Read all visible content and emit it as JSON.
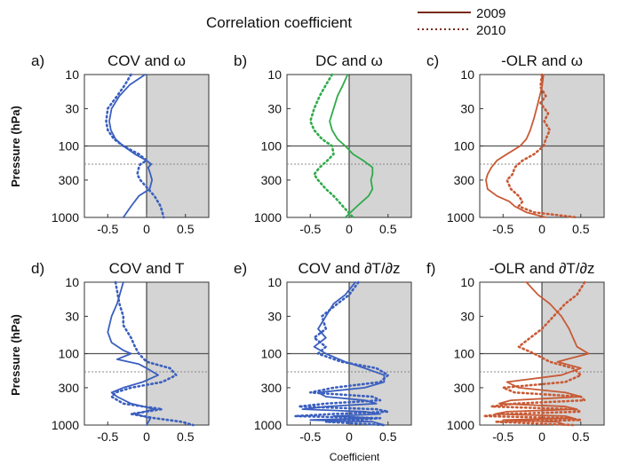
{
  "figure": {
    "title": "Correlation  coefficient",
    "legend": [
      {
        "label": "2009",
        "style": "solid",
        "color": "#7a2a1a"
      },
      {
        "label": "2010",
        "style": "dotted",
        "color": "#7a2a1a"
      }
    ],
    "ylabel": "Pressure (hPa)",
    "xlabel": "Coefficient",
    "shaded_region": "x > 0",
    "shade_color": "#d4d4d4",
    "hline_solid_hpa": 100,
    "hline_dashed_hpa": 180
  },
  "chart_data": [
    {
      "type": "line",
      "panel": "a)",
      "title": "COV and ω",
      "color": "#3a5fbf",
      "xlim": [
        -0.8,
        0.8
      ],
      "xticks": [
        -0.5,
        0,
        0.5
      ],
      "xtick_labels": [
        "-0.5",
        "0",
        "0.5"
      ],
      "yscale": "log",
      "ylim": [
        10,
        1000
      ],
      "yticks": [
        10,
        30,
        100,
        300,
        1000
      ],
      "ytick_labels": [
        "10",
        "30",
        "100",
        "300",
        "1000"
      ],
      "series": [
        {
          "name": "2009",
          "style": "solid",
          "pressure": [
            10,
            14,
            20,
            30,
            45,
            60,
            80,
            100,
            130,
            160,
            180,
            200,
            250,
            300,
            400,
            500,
            700,
            1000
          ],
          "values": [
            -0.02,
            -0.22,
            -0.35,
            -0.45,
            -0.48,
            -0.46,
            -0.4,
            -0.3,
            -0.15,
            0.0,
            0.06,
            0.02,
            0.05,
            0.07,
            0.04,
            -0.1,
            -0.2,
            -0.3
          ]
        },
        {
          "name": "2010",
          "style": "dotted",
          "pressure": [
            10,
            14,
            20,
            30,
            45,
            60,
            80,
            100,
            130,
            160,
            180,
            200,
            250,
            300,
            400,
            500,
            700,
            1000
          ],
          "values": [
            -0.2,
            -0.28,
            -0.38,
            -0.5,
            -0.52,
            -0.5,
            -0.42,
            -0.3,
            -0.1,
            0.0,
            -0.08,
            -0.1,
            -0.12,
            -0.08,
            0.02,
            0.1,
            0.18,
            0.22
          ]
        }
      ]
    },
    {
      "type": "line",
      "panel": "b)",
      "title": "DC and ω",
      "color": "#2eaa4a",
      "xlim": [
        -0.8,
        0.8
      ],
      "xticks": [
        -0.5,
        0,
        0.5
      ],
      "xtick_labels": [
        "-0.5",
        "0",
        "0.5"
      ],
      "yscale": "log",
      "ylim": [
        10,
        1000
      ],
      "yticks": [
        10,
        30,
        100,
        300,
        1000
      ],
      "ytick_labels": [
        "10",
        "30",
        "100",
        "300",
        "1000"
      ],
      "series": [
        {
          "name": "2009",
          "style": "solid",
          "pressure": [
            10,
            14,
            20,
            30,
            45,
            60,
            80,
            100,
            130,
            160,
            200,
            250,
            300,
            400,
            500,
            700,
            1000
          ],
          "values": [
            -0.02,
            -0.08,
            -0.15,
            -0.2,
            -0.25,
            -0.22,
            -0.15,
            -0.05,
            0.05,
            0.18,
            0.3,
            0.3,
            0.28,
            0.3,
            0.25,
            0.1,
            -0.05
          ]
        },
        {
          "name": "2010",
          "style": "dotted",
          "pressure": [
            10,
            14,
            20,
            30,
            45,
            60,
            80,
            100,
            130,
            160,
            200,
            250,
            300,
            400,
            500,
            700,
            1000
          ],
          "values": [
            -0.22,
            -0.3,
            -0.38,
            -0.45,
            -0.5,
            -0.45,
            -0.35,
            -0.22,
            -0.2,
            -0.28,
            -0.38,
            -0.45,
            -0.4,
            -0.3,
            -0.2,
            -0.08,
            0.05
          ]
        }
      ]
    },
    {
      "type": "line",
      "panel": "c)",
      "title": "-OLR and ω",
      "color": "#c85a35",
      "xlim": [
        -0.8,
        0.8
      ],
      "xticks": [
        -0.5,
        0,
        0.5
      ],
      "xtick_labels": [
        "-0.5",
        "0",
        "0.5"
      ],
      "yscale": "log",
      "ylim": [
        10,
        1000
      ],
      "yticks": [
        10,
        30,
        100,
        300,
        1000
      ],
      "ytick_labels": [
        "10",
        "30",
        "100",
        "300",
        "1000"
      ],
      "series": [
        {
          "name": "2009",
          "style": "solid",
          "pressure": [
            10,
            15,
            25,
            40,
            60,
            80,
            100,
            130,
            160,
            200,
            250,
            300,
            400,
            500,
            600,
            700,
            850,
            1000
          ],
          "values": [
            0.02,
            0.0,
            -0.05,
            -0.1,
            -0.15,
            -0.2,
            -0.28,
            -0.45,
            -0.58,
            -0.65,
            -0.7,
            -0.72,
            -0.7,
            -0.58,
            -0.42,
            -0.35,
            -0.2,
            0.05
          ]
        },
        {
          "name": "2010",
          "style": "dotted",
          "pressure": [
            10,
            15,
            20,
            25,
            35,
            45,
            60,
            80,
            100,
            130,
            160,
            200,
            250,
            300,
            400,
            500,
            600,
            700,
            850,
            1000
          ],
          "values": [
            0.0,
            -0.02,
            0.05,
            -0.02,
            0.08,
            0.03,
            0.1,
            0.05,
            0.02,
            -0.1,
            -0.25,
            -0.35,
            -0.38,
            -0.45,
            -0.4,
            -0.3,
            -0.25,
            -0.3,
            -0.1,
            0.45
          ]
        }
      ]
    },
    {
      "type": "line",
      "panel": "d)",
      "title": "COV and T",
      "color": "#3a5fbf",
      "xlim": [
        -0.8,
        0.8
      ],
      "xticks": [
        -0.5,
        0,
        0.5
      ],
      "xtick_labels": [
        "-0.5",
        "0",
        "0.5"
      ],
      "yscale": "log",
      "ylim": [
        10,
        1000
      ],
      "yticks": [
        10,
        30,
        100,
        300,
        1000
      ],
      "ytick_labels": [
        "10",
        "30",
        "100",
        "300",
        "1000"
      ],
      "series": [
        {
          "name": "2009",
          "style": "solid",
          "pressure": [
            10,
            20,
            30,
            50,
            70,
            90,
            100,
            120,
            140,
            160,
            200,
            250,
            300,
            350,
            400,
            500,
            600,
            700,
            800,
            1000
          ],
          "values": [
            -0.3,
            -0.38,
            -0.45,
            -0.5,
            -0.45,
            -0.3,
            -0.2,
            -0.38,
            -0.1,
            0.0,
            0.15,
            -0.05,
            -0.3,
            -0.45,
            -0.38,
            -0.2,
            0.1,
            -0.15,
            0.05,
            0.0
          ]
        },
        {
          "name": "2010",
          "style": "dotted",
          "pressure": [
            10,
            20,
            30,
            40,
            60,
            80,
            100,
            130,
            160,
            200,
            250,
            300,
            350,
            400,
            500,
            600,
            700,
            800,
            900,
            1000
          ],
          "values": [
            -0.4,
            -0.35,
            -0.3,
            -0.3,
            -0.2,
            -0.15,
            -0.1,
            0.0,
            0.3,
            0.38,
            0.2,
            -0.2,
            -0.4,
            -0.45,
            -0.3,
            0.2,
            -0.2,
            0.1,
            0.45,
            0.6
          ]
        }
      ]
    },
    {
      "type": "line",
      "panel": "e)",
      "title": "COV and ∂T/∂z",
      "color": "#3a5fbf",
      "xlim": [
        -0.8,
        0.8
      ],
      "xticks": [
        -0.5,
        0,
        0.5
      ],
      "xtick_labels": [
        "-0.5",
        "0",
        "0.5"
      ],
      "yscale": "log",
      "ylim": [
        10,
        1000
      ],
      "yticks": [
        10,
        30,
        100,
        300,
        1000
      ],
      "ytick_labels": [
        "10",
        "30",
        "100",
        "300",
        "1000"
      ],
      "series": [
        {
          "name": "2009",
          "style": "solid",
          "pressure": [
            10,
            15,
            20,
            30,
            45,
            60,
            80,
            100,
            130,
            160,
            200,
            250,
            300,
            350,
            400,
            450,
            500,
            550,
            600,
            650,
            700,
            750,
            800,
            850,
            900,
            1000
          ],
          "values": [
            0.08,
            -0.05,
            -0.2,
            -0.3,
            -0.4,
            -0.3,
            -0.45,
            -0.3,
            -0.05,
            0.2,
            0.45,
            0.45,
            0.2,
            -0.4,
            -0.3,
            0.2,
            0.35,
            -0.3,
            -0.6,
            0.2,
            0.4,
            -0.2,
            0.3,
            -0.5,
            0.3,
            0.45
          ]
        },
        {
          "name": "2010",
          "style": "dotted",
          "pressure": [
            10,
            15,
            20,
            30,
            45,
            60,
            80,
            100,
            130,
            160,
            200,
            250,
            300,
            350,
            400,
            450,
            500,
            550,
            600,
            650,
            700,
            750,
            800,
            850,
            900,
            1000
          ],
          "values": [
            0.12,
            0.0,
            -0.15,
            -0.35,
            -0.3,
            -0.45,
            -0.3,
            -0.4,
            -0.1,
            0.35,
            0.5,
            0.4,
            -0.2,
            -0.5,
            0.3,
            0.4,
            -0.3,
            -0.65,
            0.35,
            0.5,
            -0.2,
            -0.7,
            0.4,
            0.1,
            -0.3,
            0.45
          ]
        }
      ]
    },
    {
      "type": "line",
      "panel": "f)",
      "title": "-OLR and ∂T/∂z",
      "color": "#c85a35",
      "xlim": [
        -0.8,
        0.8
      ],
      "xticks": [
        -0.5,
        0,
        0.5
      ],
      "xtick_labels": [
        "-0.5",
        "0",
        "0.5"
      ],
      "yscale": "log",
      "ylim": [
        10,
        1000
      ],
      "yticks": [
        10,
        30,
        100,
        300,
        1000
      ],
      "ytick_labels": [
        "10",
        "30",
        "100",
        "300",
        "1000"
      ],
      "series": [
        {
          "name": "2009",
          "style": "solid",
          "pressure": [
            10,
            15,
            20,
            30,
            45,
            60,
            80,
            100,
            130,
            160,
            200,
            250,
            300,
            350,
            400,
            450,
            500,
            550,
            600,
            650,
            700,
            750,
            800,
            850,
            900,
            1000
          ],
          "values": [
            -0.2,
            -0.05,
            0.1,
            0.25,
            0.35,
            0.4,
            0.45,
            0.6,
            0.2,
            0.5,
            0.25,
            -0.45,
            -0.3,
            0.3,
            0.5,
            -0.4,
            -0.55,
            0.3,
            0.45,
            -0.45,
            -0.6,
            0.3,
            0.4,
            -0.5,
            0.2,
            0.3
          ]
        },
        {
          "name": "2010",
          "style": "dotted",
          "pressure": [
            10,
            15,
            20,
            30,
            45,
            60,
            80,
            100,
            130,
            160,
            200,
            250,
            300,
            350,
            400,
            450,
            500,
            550,
            600,
            650,
            700,
            750,
            800,
            850,
            900,
            1000
          ],
          "values": [
            0.55,
            0.45,
            0.3,
            0.15,
            0.0,
            -0.15,
            -0.3,
            -0.1,
            0.1,
            0.4,
            0.5,
            0.3,
            -0.5,
            -0.35,
            0.5,
            0.55,
            -0.35,
            -0.65,
            0.4,
            0.5,
            -0.5,
            -0.75,
            0.35,
            0.5,
            -0.6,
            0.4
          ]
        }
      ]
    }
  ]
}
